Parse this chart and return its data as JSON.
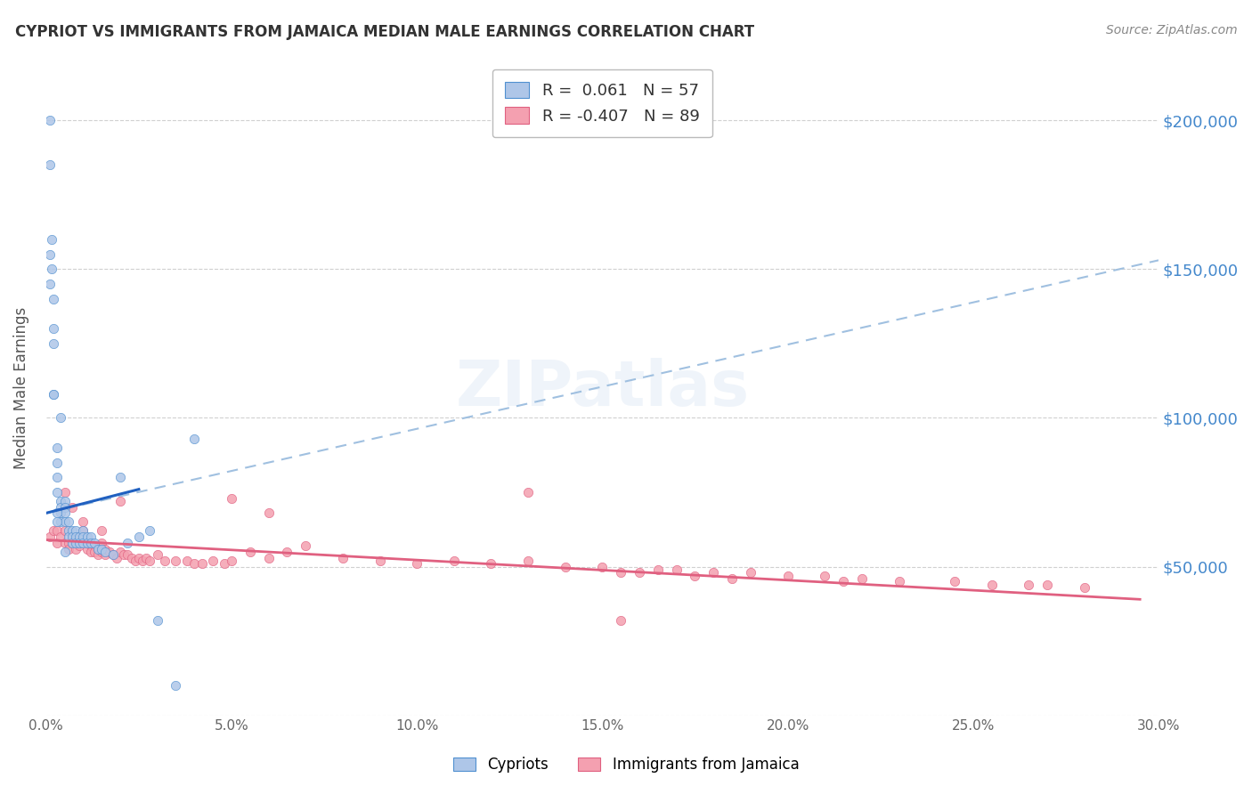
{
  "title": "CYPRIOT VS IMMIGRANTS FROM JAMAICA MEDIAN MALE EARNINGS CORRELATION CHART",
  "source": "Source: ZipAtlas.com",
  "ylabel": "Median Male Earnings",
  "xlim": [
    0.0,
    0.3
  ],
  "ylim": [
    0,
    220000
  ],
  "ytick_values": [
    0,
    50000,
    100000,
    150000,
    200000
  ],
  "xtick_labels": [
    "0.0%",
    "5.0%",
    "10.0%",
    "15.0%",
    "20.0%",
    "25.0%",
    "30.0%"
  ],
  "xtick_values": [
    0.0,
    0.05,
    0.1,
    0.15,
    0.2,
    0.25,
    0.3
  ],
  "legend_entries": [
    {
      "label": "Cypriots",
      "color": "#aec6e8",
      "edge": "#5090d0",
      "R": " 0.061",
      "N": "57"
    },
    {
      "label": "Immigrants from Jamaica",
      "color": "#f4a0b0",
      "edge": "#e06080",
      "R": "-0.407",
      "N": "89"
    }
  ],
  "cypriot_scatter": {
    "x": [
      0.001,
      0.001,
      0.0015,
      0.0015,
      0.002,
      0.002,
      0.002,
      0.002,
      0.003,
      0.003,
      0.003,
      0.003,
      0.004,
      0.004,
      0.004,
      0.004,
      0.005,
      0.005,
      0.005,
      0.005,
      0.006,
      0.006,
      0.006,
      0.007,
      0.007,
      0.007,
      0.008,
      0.008,
      0.008,
      0.009,
      0.009,
      0.01,
      0.01,
      0.01,
      0.011,
      0.011,
      0.012,
      0.012,
      0.013,
      0.014,
      0.015,
      0.016,
      0.018,
      0.02,
      0.022,
      0.025,
      0.028,
      0.03,
      0.035,
      0.04,
      0.001,
      0.001,
      0.002,
      0.003,
      0.003,
      0.004,
      0.005
    ],
    "y": [
      200000,
      185000,
      160000,
      150000,
      140000,
      130000,
      125000,
      108000,
      90000,
      85000,
      80000,
      75000,
      72000,
      70000,
      68000,
      65000,
      72000,
      70000,
      68000,
      65000,
      65000,
      62000,
      60000,
      62000,
      60000,
      58000,
      62000,
      60000,
      58000,
      60000,
      58000,
      62000,
      60000,
      58000,
      60000,
      58000,
      60000,
      58000,
      58000,
      56000,
      56000,
      55000,
      54000,
      80000,
      58000,
      60000,
      62000,
      32000,
      10000,
      93000,
      155000,
      145000,
      108000,
      68000,
      65000,
      100000,
      55000
    ]
  },
  "cypriot_line": {
    "x": [
      0.0,
      0.025
    ],
    "y": [
      68000,
      76000
    ],
    "color": "#2060c0",
    "linewidth": 2.2
  },
  "cypriot_trend": {
    "x": [
      0.0,
      0.3
    ],
    "y": [
      68000,
      153000
    ],
    "color": "#a0c0e0",
    "linewidth": 1.5
  },
  "jamaica_scatter": {
    "x": [
      0.001,
      0.002,
      0.003,
      0.003,
      0.004,
      0.005,
      0.005,
      0.006,
      0.006,
      0.007,
      0.007,
      0.008,
      0.008,
      0.009,
      0.009,
      0.01,
      0.01,
      0.011,
      0.011,
      0.012,
      0.012,
      0.013,
      0.013,
      0.014,
      0.014,
      0.015,
      0.015,
      0.016,
      0.016,
      0.017,
      0.018,
      0.019,
      0.02,
      0.021,
      0.022,
      0.023,
      0.024,
      0.025,
      0.026,
      0.027,
      0.028,
      0.03,
      0.032,
      0.035,
      0.038,
      0.04,
      0.042,
      0.045,
      0.048,
      0.05,
      0.055,
      0.06,
      0.065,
      0.07,
      0.08,
      0.09,
      0.1,
      0.11,
      0.12,
      0.13,
      0.14,
      0.15,
      0.155,
      0.16,
      0.165,
      0.17,
      0.175,
      0.18,
      0.185,
      0.19,
      0.2,
      0.21,
      0.215,
      0.22,
      0.23,
      0.245,
      0.255,
      0.265,
      0.27,
      0.28,
      0.005,
      0.007,
      0.01,
      0.015,
      0.02,
      0.05,
      0.06,
      0.13,
      0.155
    ],
    "y": [
      60000,
      62000,
      58000,
      62000,
      60000,
      62000,
      58000,
      58000,
      56000,
      60000,
      58000,
      58000,
      56000,
      60000,
      57000,
      62000,
      58000,
      58000,
      56000,
      57000,
      55000,
      57000,
      55000,
      56000,
      54000,
      58000,
      55000,
      56000,
      54000,
      55000,
      54000,
      53000,
      55000,
      54000,
      54000,
      53000,
      52000,
      53000,
      52000,
      53000,
      52000,
      54000,
      52000,
      52000,
      52000,
      51000,
      51000,
      52000,
      51000,
      52000,
      55000,
      53000,
      55000,
      57000,
      53000,
      52000,
      51000,
      52000,
      51000,
      52000,
      50000,
      50000,
      48000,
      48000,
      49000,
      49000,
      47000,
      48000,
      46000,
      48000,
      47000,
      47000,
      45000,
      46000,
      45000,
      45000,
      44000,
      44000,
      44000,
      43000,
      75000,
      70000,
      65000,
      62000,
      72000,
      73000,
      68000,
      75000,
      32000
    ]
  },
  "jamaica_line": {
    "x": [
      0.0,
      0.295
    ],
    "y": [
      59000,
      39000
    ],
    "color": "#e06080",
    "linewidth": 2.0
  },
  "scatter_size": 55,
  "background_color": "#ffffff",
  "grid_color": "#d0d0d0",
  "right_ylabel_color": "#4488cc",
  "right_ytick_labels": [
    "$200,000",
    "$150,000",
    "$100,000",
    "$50,000"
  ],
  "right_ytick_values": [
    200000,
    150000,
    100000,
    50000
  ]
}
